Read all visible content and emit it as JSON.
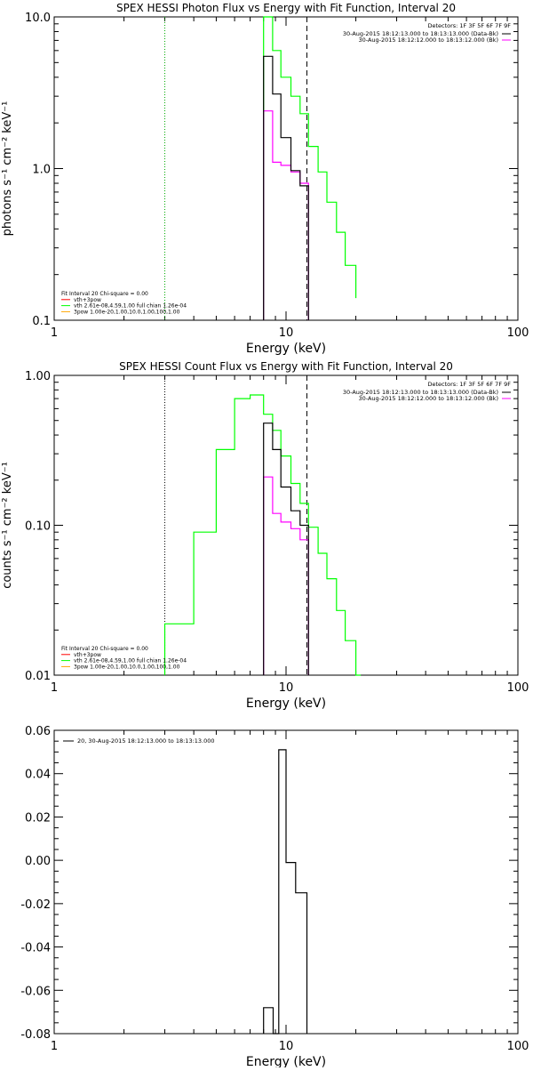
{
  "colors": {
    "data": "#000000",
    "background": "#ff00ff",
    "model": "#00ff00",
    "component": "#ffa500",
    "line": "#ff0000"
  },
  "chart_data": [
    {
      "type": "line",
      "step": true,
      "title": "SPEX HESSI Photon Flux vs Energy with Fit Function, Interval 20",
      "xlabel": "Energy (keV)",
      "ylabel": "photons s⁻¹ cm⁻² keV⁻¹",
      "xscale": "log",
      "yscale": "log",
      "xlim": [
        1,
        100
      ],
      "ylim": [
        0.1,
        10
      ],
      "xticks": [
        "1",
        "10",
        "100"
      ],
      "yticks": [
        "0.1",
        "1.0",
        "10.0"
      ],
      "ytick_values": [
        0.1,
        1,
        10
      ],
      "vlines": [
        {
          "x": 3,
          "style": "dotted",
          "color": "#00aa00"
        },
        {
          "x": 12.3,
          "style": "dashed",
          "color": "#000000"
        }
      ],
      "legend_header": "Detectors: 1F 3F 5F 6F 7F 9F",
      "legend_top": [
        {
          "label": "30-Aug-2015 18:12:13.000 to 18:13:13.000 (Data-Bk)",
          "color": "#000000"
        },
        {
          "label": "30-Aug-2015 18:12:12.000 to 18:13:12.000 (Bk)",
          "color": "#ff00ff"
        }
      ],
      "legend_bottom": [
        {
          "label": "Fit Interval 20   Chi-square = 0.00",
          "color": null
        },
        {
          "label": "vth+3pow",
          "color": "#ff0000"
        },
        {
          "label": "vth 2.61e-08,4.59,1.00  full chian 1.26e-04",
          "color": "#00ff00"
        },
        {
          "label": "3pow 1.00e-20,1.00,10.0,1.00,100,1.00",
          "color": "#ffa500"
        }
      ],
      "series": [
        {
          "color": "#00ff00",
          "edges": [
            8,
            8.75,
            9.5,
            10.5,
            11.5,
            12.5,
            13.75,
            15,
            16.5,
            18,
            20
          ],
          "values": [
            15,
            6,
            4,
            3,
            2.3,
            1.4,
            0.95,
            0.6,
            0.38,
            0.23,
            0.14
          ]
        },
        {
          "color": "#ff00ff",
          "edges": [
            8,
            8.75,
            9.5,
            10.5,
            11.5,
            12.5
          ],
          "values": [
            2.4,
            1.1,
            1.05,
            0.95,
            0.8
          ]
        },
        {
          "color": "#000000",
          "edges": [
            8,
            8.75,
            9.5,
            10.5,
            11.5,
            12.5
          ],
          "values": [
            5.5,
            3.1,
            1.6,
            0.97,
            0.77
          ]
        }
      ]
    },
    {
      "type": "line",
      "step": true,
      "title": "SPEX HESSI Count Flux vs Energy with Fit Function, Interval 20",
      "xlabel": "Energy (keV)",
      "ylabel": "counts s⁻¹ cm⁻² keV⁻¹",
      "xscale": "log",
      "yscale": "log",
      "xlim": [
        1,
        100
      ],
      "ylim": [
        0.01,
        1
      ],
      "xticks": [
        "1",
        "10",
        "100"
      ],
      "yticks": [
        "0.01",
        "0.10",
        "1.00"
      ],
      "ytick_values": [
        0.01,
        0.1,
        1
      ],
      "vlines": [
        {
          "x": 3,
          "style": "dotted",
          "color": "#000000"
        },
        {
          "x": 12.3,
          "style": "dashed",
          "color": "#000000"
        }
      ],
      "legend_header": "Detectors: 1F 3F 5F 6F 7F 9F",
      "legend_top": [
        {
          "label": "30-Aug-2015 18:12:13.000 to 18:13:13.000 (Data-Bk)",
          "color": "#000000"
        },
        {
          "label": "30-Aug-2015 18:12:12.000 to 18:13:12.000 (Bk)",
          "color": "#ff00ff"
        }
      ],
      "legend_bottom": [
        {
          "label": "Fit Interval 20   Chi-square = 0.00",
          "color": null
        },
        {
          "label": "vth+3pow",
          "color": "#ff0000"
        },
        {
          "label": "vth 2.61e-08,4.59,1.00  full chian 1.26e-04",
          "color": "#00ff00"
        },
        {
          "label": "3pow 1.00e-20,1.00,10.0,1.00,100,1.00",
          "color": "#ffa500"
        }
      ],
      "series": [
        {
          "color": "#00ff00",
          "edges": [
            3,
            4,
            5,
            6,
            7,
            8,
            8.75,
            9.5,
            10.5,
            11.5,
            12.5,
            13.75,
            15,
            16.5,
            18,
            20,
            21
          ],
          "values": [
            0.022,
            0.09,
            0.32,
            0.7,
            0.74,
            0.55,
            0.43,
            0.29,
            0.19,
            0.14,
            0.097,
            0.065,
            0.044,
            0.027,
            0.017,
            0.01
          ]
        },
        {
          "color": "#ff00ff",
          "edges": [
            8,
            8.75,
            9.5,
            10.5,
            11.5,
            12.5
          ],
          "values": [
            0.21,
            0.12,
            0.105,
            0.095,
            0.08
          ]
        },
        {
          "color": "#000000",
          "edges": [
            8,
            8.75,
            9.5,
            10.5,
            11.5,
            12.5
          ],
          "values": [
            0.48,
            0.32,
            0.18,
            0.125,
            0.1
          ]
        }
      ]
    },
    {
      "type": "line",
      "step": true,
      "title": "",
      "xlabel": "Energy (keV)",
      "ylabel": "",
      "xscale": "log",
      "yscale": "linear",
      "xlim": [
        1,
        100
      ],
      "ylim": [
        -0.08,
        0.06
      ],
      "xticks": [
        "1",
        "10",
        "100"
      ],
      "yticks": [
        "-0.08",
        "-0.06",
        "-0.04",
        "-0.02",
        "0.00",
        "0.02",
        "0.04",
        "0.06"
      ],
      "ytick_values": [
        -0.08,
        -0.06,
        -0.04,
        -0.02,
        0,
        0.02,
        0.04,
        0.06
      ],
      "vlines": [],
      "legend_header": "",
      "legend_top": [
        {
          "label": "20, 30-Aug-2015 18:12:13.000 to 18:13:13.000",
          "color": "#000000"
        }
      ],
      "legend_bottom": [],
      "series": [
        {
          "color": "#000000",
          "edges": [
            8,
            8.8,
            9.3,
            10,
            11,
            12.3
          ],
          "values": [
            -0.068,
            -0.085,
            0.051,
            -0.001,
            -0.015
          ]
        }
      ]
    }
  ]
}
